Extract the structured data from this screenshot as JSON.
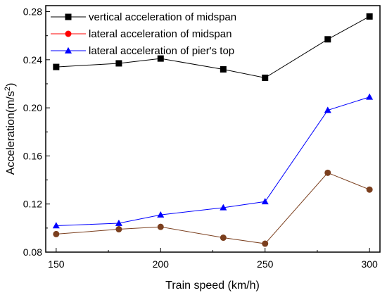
{
  "chart_data": {
    "type": "line",
    "title": "",
    "xlabel": "Train speed (km/h)",
    "ylabel_main": "Acceleration(m/s",
    "ylabel_sup": "2",
    "ylabel_end": ")",
    "x": [
      150,
      180,
      200,
      230,
      250,
      280,
      300
    ],
    "xlim": [
      145,
      305
    ],
    "ylim": [
      0.08,
      0.285
    ],
    "xticks": [
      150,
      200,
      250,
      300
    ],
    "xtick_labels": [
      "150",
      "200",
      "250",
      "300"
    ],
    "yticks": [
      0.08,
      0.12,
      0.16,
      0.2,
      0.24,
      0.28
    ],
    "ytick_labels": [
      "0.08",
      "0.12",
      "0.16",
      "0.20",
      "0.24",
      "0.28"
    ],
    "grid": false,
    "legend_position": "top-left",
    "series": [
      {
        "name": "vertical acceleration of midspan",
        "marker": "square",
        "color": "#000000",
        "line_color": "#000000",
        "values": [
          0.234,
          0.237,
          0.241,
          0.232,
          0.225,
          0.257,
          0.276
        ]
      },
      {
        "name": "lateral acceleration of midspan",
        "marker": "circle",
        "color": "#ff0000",
        "line_color": "#ff0000",
        "plot_color": "#7b3f1e",
        "values": [
          0.095,
          0.099,
          0.101,
          0.092,
          0.087,
          0.146,
          0.132
        ]
      },
      {
        "name": " lateral acceleration of pier's top",
        "marker": "triangle",
        "color": "#0000ff",
        "line_color": "#0000ff",
        "values": [
          0.102,
          0.104,
          0.111,
          0.117,
          0.122,
          0.198,
          0.209
        ]
      }
    ]
  }
}
